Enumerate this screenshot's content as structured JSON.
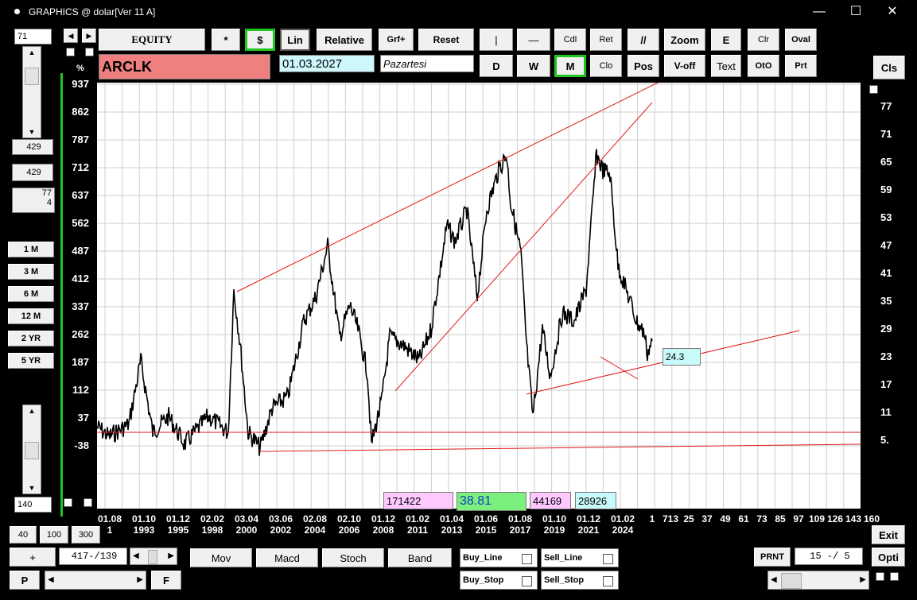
{
  "window": {
    "title": "GRAPHICS @ dolar[Ver 11 A]",
    "minimize": "—",
    "maximize": "☐",
    "close": "✕"
  },
  "left_panel": {
    "top_value": "71",
    "box1": "429",
    "box2": "429",
    "box3_line1": "77",
    "box3_line2": "4",
    "percent_label": "%",
    "periods": [
      "1 M",
      "3 M",
      "6 M",
      "12 M",
      "2 YR",
      "5 YR"
    ],
    "bottom_value": "140"
  },
  "toolbar": {
    "equity": "EQUITY",
    "star": "*",
    "dollar": "$",
    "lin": "Lin",
    "relative": "Relative",
    "grf": "Grf+",
    "reset": "Reset",
    "vline": "|",
    "hline": "—",
    "cdl": "Cdl",
    "ret": "Ret",
    "parallel": "//",
    "zoom": "Zoom",
    "e": "E",
    "clr": "Clr",
    "oval": "Oval",
    "d": "D",
    "w": "W",
    "m": "M",
    "clo": "Clo",
    "pos": "Pos",
    "voff": "V-off",
    "text": "Text",
    "oto": "OtO",
    "prt": "Prt",
    "cls": "Cls"
  },
  "symbol": "ARCLK",
  "date": "01.03.2027",
  "day": "Pazartesi",
  "left_axis": [
    "937",
    "862",
    "787",
    "712",
    "637",
    "562",
    "487",
    "412",
    "337",
    "262",
    "187",
    "112",
    "37",
    "-38"
  ],
  "right_axis": [
    "77",
    "71",
    "65",
    "59",
    "53",
    "47",
    "41",
    "35",
    "29",
    "23",
    "17",
    "11",
    "5."
  ],
  "x_labels_top": [
    "01.08",
    "01.10",
    "01.12",
    "02.02",
    "03.04",
    "03.06",
    "02.08",
    "02.10",
    "01.12",
    "01.02",
    "01.04",
    "01.06",
    "01.08",
    "01.10",
    "01.12",
    "01.02"
  ],
  "x_labels_bottom": [
    "1",
    "1993",
    "1995",
    "1998",
    "2000",
    "2002",
    "2004",
    "2006",
    "2008",
    "2011",
    "2013",
    "2015",
    "2017",
    "2019",
    "2021",
    "2024"
  ],
  "x_labels_right": [
    "1",
    "713",
    "25",
    "37",
    "49",
    "61",
    "73",
    "85",
    "97",
    "109",
    "126",
    "143",
    "160"
  ],
  "price_tag": "24.3",
  "info_boxes": {
    "pink1": "171422",
    "green": "38.81",
    "pink2": "44169",
    "cyan": "28926"
  },
  "bottom": {
    "b40": "40",
    "b100": "100",
    "b300": "300",
    "plus": "+",
    "range": "417-/139",
    "p": "P",
    "f": "F",
    "mov": "Mov",
    "macd": "Macd",
    "stoch": "Stoch",
    "band": "Band",
    "buy_line": "Buy_Line",
    "sell_line": "Sell_Line",
    "buy_stop": "Buy_Stop",
    "sell_stop": "Sell_Stop",
    "prnt": "PRNT",
    "ratio": "15 -/ 5",
    "exit": "Exit",
    "opti": "Opti"
  },
  "colors": {
    "plot_bg": "#ffffff",
    "trend": "#e11b1b",
    "price": "#000000",
    "symbol_bg": "#f08080",
    "date_bg": "#cdf7fb",
    "pink": "#ffc8ff",
    "green": "#7cf07c",
    "cyan": "#c8fafa",
    "accent_border": "#1ec61e"
  }
}
